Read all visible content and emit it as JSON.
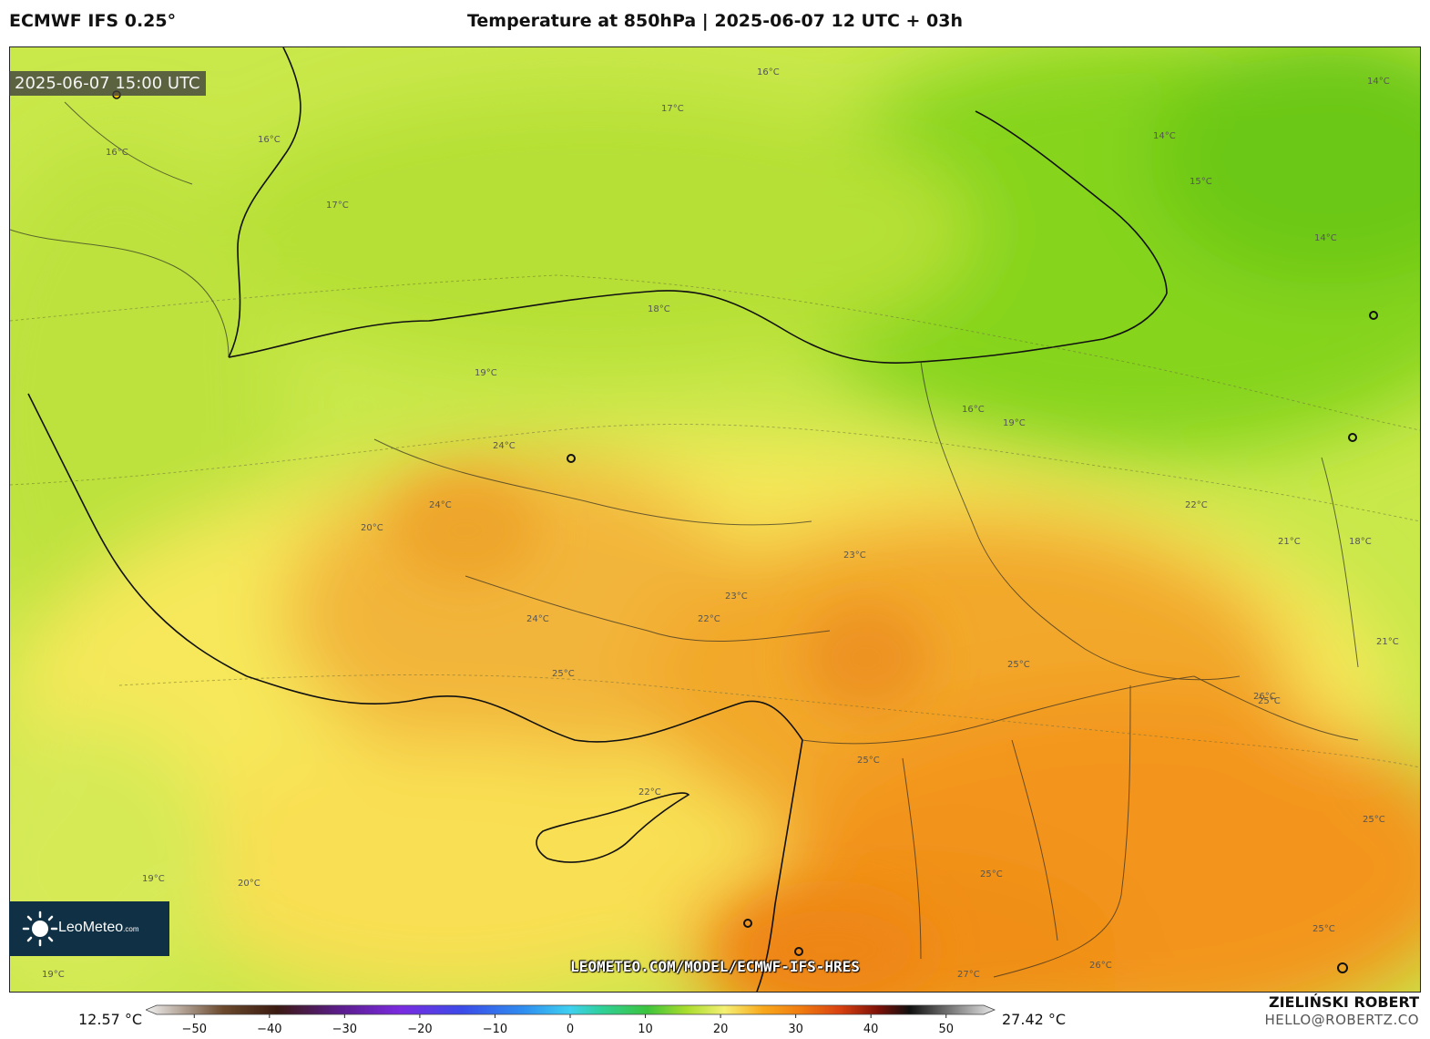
{
  "header": {
    "model": "ECMWF IFS 0.25°",
    "title": "Temperature at 850hPa | 2025-06-07 12 UTC + 03h"
  },
  "map": {
    "valid_time": "2025-06-07 15:00 UTC",
    "field": "temperature_850hPa",
    "isotherm_labels": [
      "16°C",
      "17°C",
      "16°C",
      "17°C",
      "18°C",
      "16°C",
      "19°C",
      "24°C",
      "24°C",
      "20°C",
      "24°C",
      "25°C",
      "23°C",
      "23°C",
      "22°C",
      "25°C",
      "26°C",
      "22°C",
      "19°C",
      "20°C",
      "19°C",
      "16°C",
      "19°C",
      "25°C",
      "25°C",
      "26°C",
      "27°C",
      "25°C",
      "14°C",
      "14°C",
      "15°C",
      "14°C",
      "22°C",
      "21°C",
      "18°C",
      "21°C",
      "25°C",
      "25°C"
    ],
    "watermark": "LEOMETEO.COM/MODEL/ECMWF-IFS-HRES",
    "logo": {
      "brand": "LeoMeteo",
      "suffix": ".com"
    }
  },
  "colorbar": {
    "min_label": "12.57 °C",
    "max_label": "27.42 °C",
    "range": [
      -55,
      55
    ],
    "tick_labels": [
      "−50",
      "−40",
      "−30",
      "−20",
      "−10",
      "0",
      "10",
      "20",
      "30",
      "40",
      "50"
    ],
    "tick_values": [
      -50,
      -40,
      -30,
      -20,
      -10,
      0,
      10,
      20,
      30,
      40,
      50
    ],
    "stops": [
      {
        "v": -55,
        "c": "#f2f2f2"
      },
      {
        "v": -45,
        "c": "#6b4a2e"
      },
      {
        "v": -38,
        "c": "#3b1a10"
      },
      {
        "v": -30,
        "c": "#5a1c8a"
      },
      {
        "v": -22,
        "c": "#7a2be0"
      },
      {
        "v": -14,
        "c": "#3b4be8"
      },
      {
        "v": -6,
        "c": "#2f8ef0"
      },
      {
        "v": 0,
        "c": "#3fd0f0"
      },
      {
        "v": 4,
        "c": "#2fd09a"
      },
      {
        "v": 10,
        "c": "#3cc43c"
      },
      {
        "v": 15,
        "c": "#a8dc2c"
      },
      {
        "v": 20,
        "c": "#f4f074"
      },
      {
        "v": 25,
        "c": "#f8a81c"
      },
      {
        "v": 30,
        "c": "#f07a10"
      },
      {
        "v": 35,
        "c": "#d84010"
      },
      {
        "v": 40,
        "c": "#7a1008"
      },
      {
        "v": 44,
        "c": "#101010"
      },
      {
        "v": 55,
        "c": "#e8e8e8"
      }
    ]
  },
  "credits": {
    "author": "ZIELIŃSKI ROBERT",
    "email": "HELLO@ROBERTZ.CO"
  }
}
